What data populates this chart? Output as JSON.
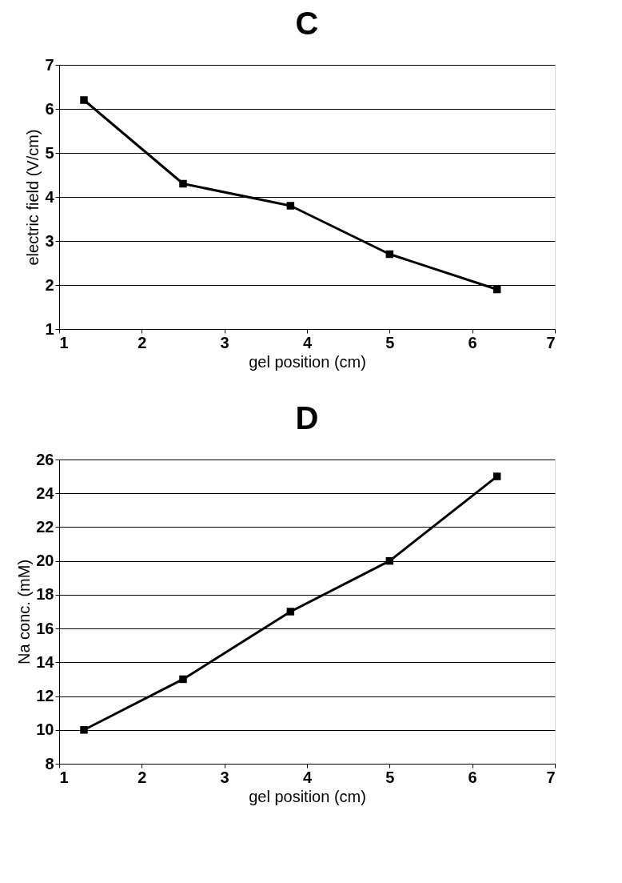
{
  "chart_data": [
    {
      "type": "line",
      "title": "C",
      "xlabel": "gel position (cm)",
      "ylabel": "electric field (V/cm)",
      "x": [
        1.3,
        2.5,
        3.8,
        5.0,
        6.3
      ],
      "series": [
        {
          "color": "#000000",
          "values": [
            6.2,
            4.3,
            3.8,
            2.7,
            1.9
          ]
        }
      ],
      "xlim": [
        1,
        7
      ],
      "xticks": [
        1,
        2,
        3,
        4,
        5,
        6,
        7
      ],
      "ylim": [
        1,
        7
      ],
      "yticks": [
        1,
        2,
        3,
        4,
        5,
        6,
        7
      ],
      "grid": "y",
      "marker": "square",
      "line_style": "solid"
    },
    {
      "type": "line",
      "title": "D",
      "xlabel": "gel position (cm)",
      "ylabel": "Na conc. (mM)",
      "x": [
        1.3,
        2.5,
        3.8,
        5.0,
        6.3
      ],
      "series": [
        {
          "color": "#000000",
          "values": [
            10,
            13,
            17,
            20,
            25
          ]
        }
      ],
      "xlim": [
        1,
        7
      ],
      "xticks": [
        1,
        2,
        3,
        4,
        5,
        6,
        7
      ],
      "ylim": [
        8,
        26
      ],
      "yticks": [
        8,
        10,
        12,
        14,
        16,
        18,
        20,
        22,
        24,
        26
      ],
      "grid": "y",
      "marker": "square",
      "line_style": "solid"
    }
  ]
}
